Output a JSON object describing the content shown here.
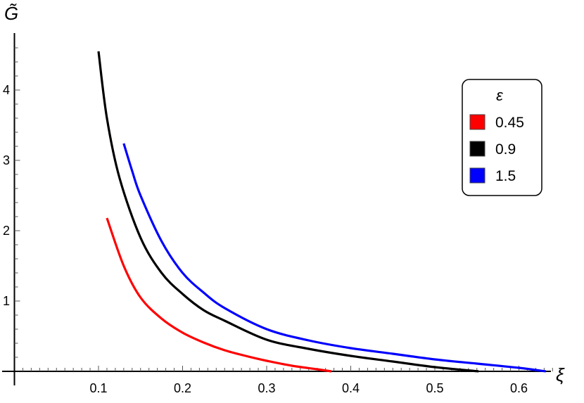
{
  "chart_data": {
    "type": "line",
    "xlabel": "ξ",
    "ylabel": "G̃",
    "xlim": [
      0,
      0.64
    ],
    "ylim": [
      0,
      4.75
    ],
    "xticks": [
      "0.1",
      "0.2",
      "0.3",
      "0.4",
      "0.5",
      "0.6"
    ],
    "yticks": [
      "1",
      "2",
      "3",
      "4"
    ],
    "grid": false,
    "legend": {
      "title": "ε",
      "placement": "right"
    },
    "series": [
      {
        "name": "0.45",
        "color": "#ff0000",
        "x": [
          0.11,
          0.13,
          0.15,
          0.175,
          0.2,
          0.225,
          0.25,
          0.275,
          0.3,
          0.33,
          0.36,
          0.377
        ],
        "y": [
          2.18,
          1.5,
          1.05,
          0.75,
          0.55,
          0.41,
          0.3,
          0.22,
          0.15,
          0.08,
          0.03,
          0.0
        ]
      },
      {
        "name": "0.9",
        "color": "#000000",
        "x": [
          0.1,
          0.11,
          0.125,
          0.15,
          0.175,
          0.2,
          0.225,
          0.25,
          0.3,
          0.35,
          0.4,
          0.45,
          0.5,
          0.552
        ],
        "y": [
          4.55,
          3.6,
          2.75,
          1.9,
          1.4,
          1.1,
          0.87,
          0.72,
          0.45,
          0.32,
          0.22,
          0.14,
          0.06,
          0.0
        ]
      },
      {
        "name": "1.5",
        "color": "#0000ff",
        "x": [
          0.13,
          0.14,
          0.15,
          0.175,
          0.2,
          0.225,
          0.25,
          0.3,
          0.35,
          0.4,
          0.45,
          0.5,
          0.55,
          0.6,
          0.632
        ],
        "y": [
          3.24,
          2.85,
          2.5,
          1.85,
          1.4,
          1.12,
          0.9,
          0.6,
          0.44,
          0.33,
          0.25,
          0.17,
          0.11,
          0.05,
          0.0
        ]
      }
    ]
  }
}
